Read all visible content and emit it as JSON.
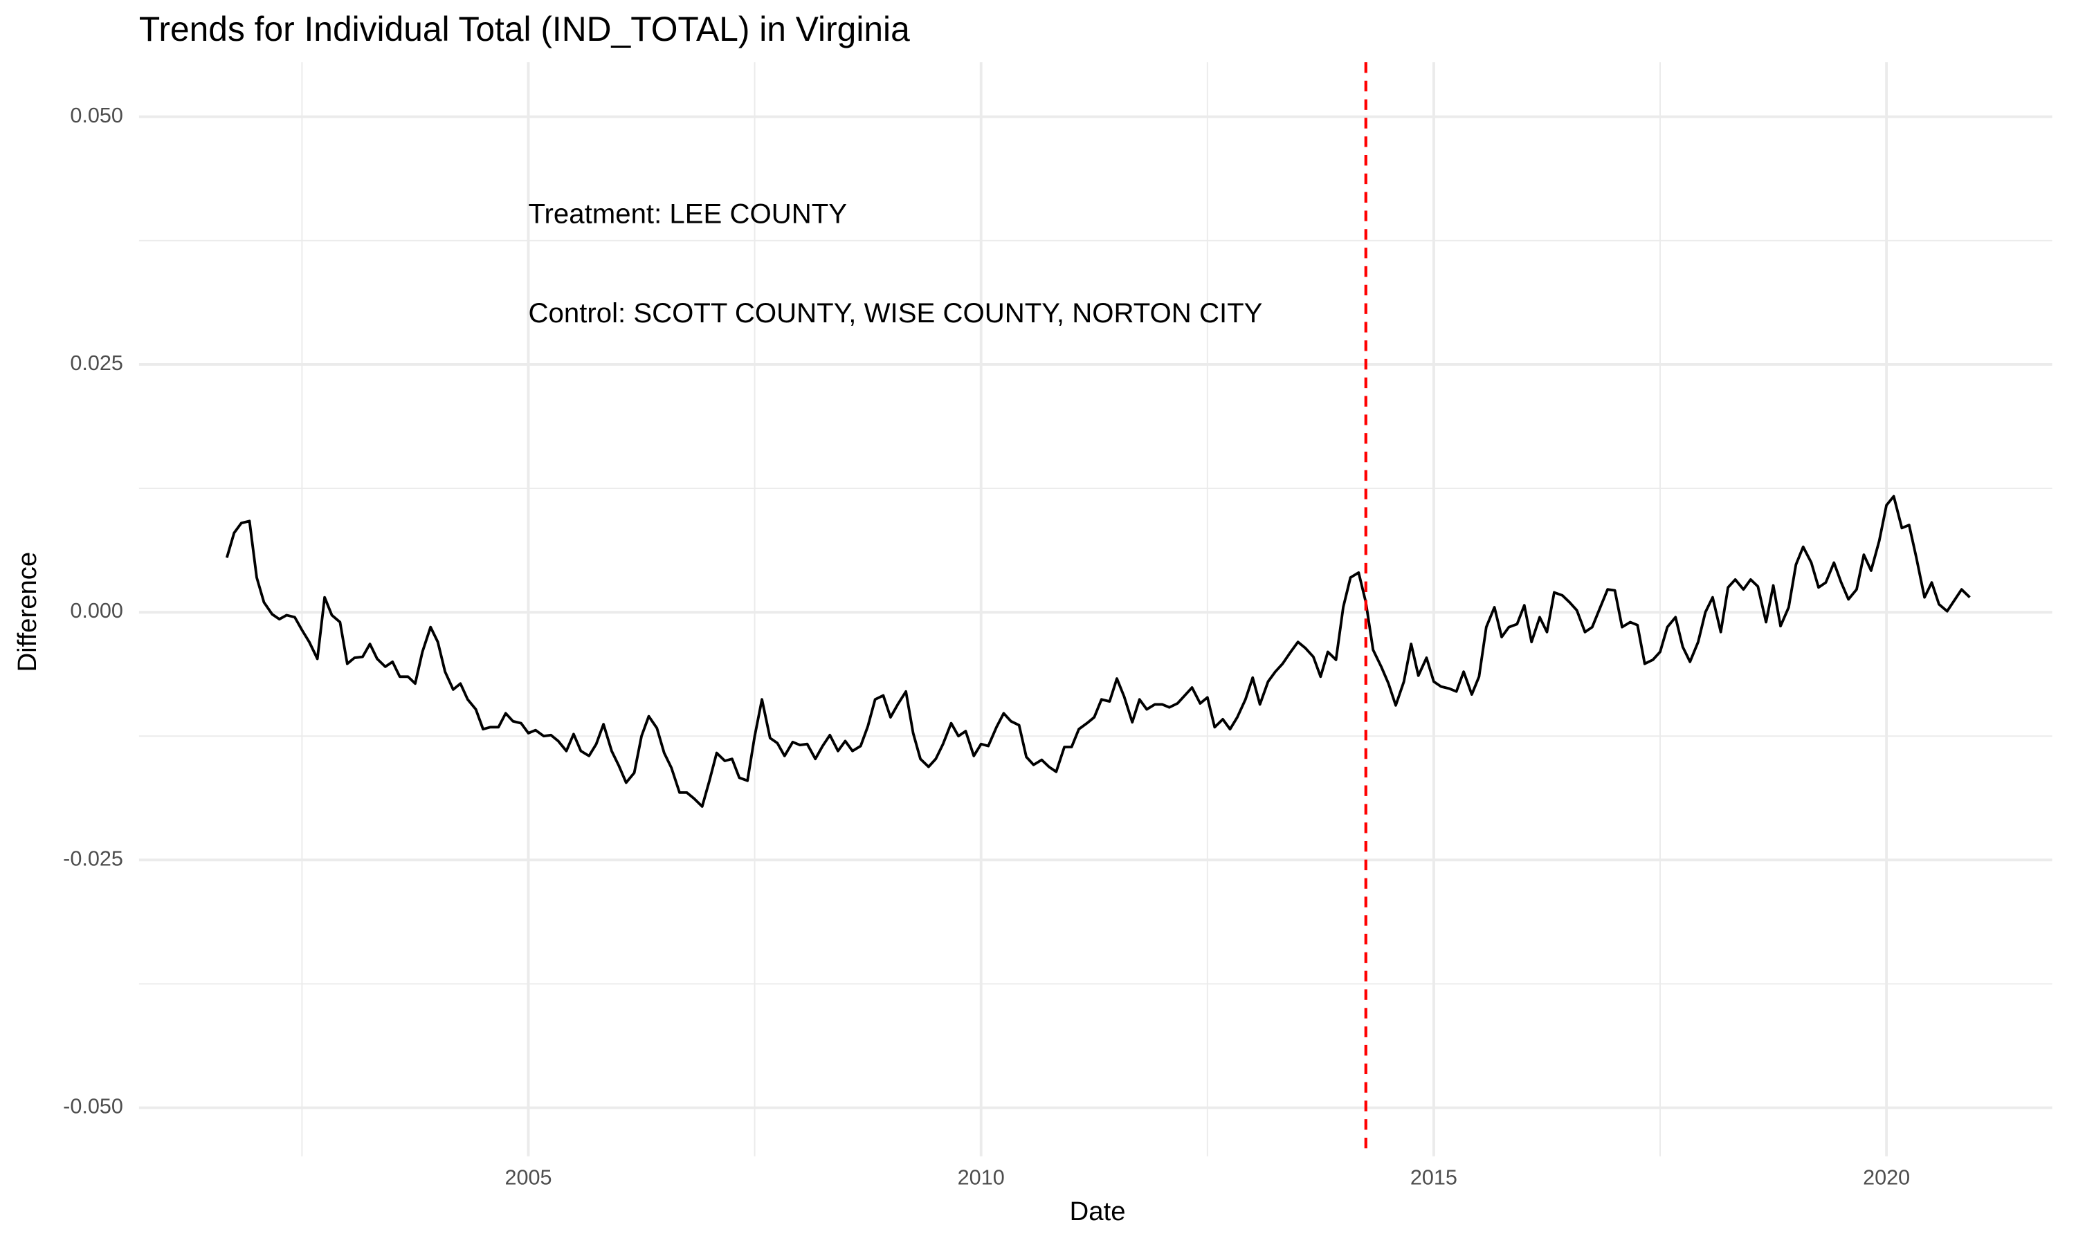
{
  "chart_data": {
    "type": "line",
    "title": "Trends for Individual Total (IND_TOTAL) in Virginia",
    "x_label": "Date",
    "y_label": "Difference",
    "color": "#000000",
    "x": [
      2001.67,
      2001.75,
      2001.83,
      2001.92,
      2002.0,
      2002.08,
      2002.17,
      2002.25,
      2002.33,
      2002.42,
      2002.5,
      2002.58,
      2002.67,
      2002.75,
      2002.83,
      2002.92,
      2003.0,
      2003.08,
      2003.17,
      2003.25,
      2003.33,
      2003.42,
      2003.5,
      2003.58,
      2003.67,
      2003.75,
      2003.83,
      2003.92,
      2004.0,
      2004.08,
      2004.17,
      2004.25,
      2004.33,
      2004.42,
      2004.5,
      2004.58,
      2004.67,
      2004.75,
      2004.83,
      2004.92,
      2005.0,
      2005.08,
      2005.17,
      2005.25,
      2005.33,
      2005.42,
      2005.5,
      2005.58,
      2005.67,
      2005.75,
      2005.83,
      2005.92,
      2006.0,
      2006.08,
      2006.17,
      2006.25,
      2006.33,
      2006.42,
      2006.5,
      2006.58,
      2006.67,
      2006.75,
      2006.83,
      2006.92,
      2007.0,
      2007.08,
      2007.17,
      2007.25,
      2007.33,
      2007.42,
      2007.5,
      2007.58,
      2007.67,
      2007.75,
      2007.83,
      2007.92,
      2008.0,
      2008.08,
      2008.17,
      2008.25,
      2008.33,
      2008.42,
      2008.5,
      2008.58,
      2008.67,
      2008.75,
      2008.83,
      2008.92,
      2009.0,
      2009.08,
      2009.17,
      2009.25,
      2009.33,
      2009.42,
      2009.5,
      2009.58,
      2009.67,
      2009.75,
      2009.83,
      2009.92,
      2010.0,
      2010.08,
      2010.17,
      2010.25,
      2010.33,
      2010.42,
      2010.5,
      2010.58,
      2010.67,
      2010.75,
      2010.83,
      2010.92,
      2011.0,
      2011.08,
      2011.17,
      2011.25,
      2011.33,
      2011.42,
      2011.5,
      2011.58,
      2011.67,
      2011.75,
      2011.83,
      2011.92,
      2012.0,
      2012.08,
      2012.17,
      2012.25,
      2012.33,
      2012.42,
      2012.5,
      2012.58,
      2012.67,
      2012.75,
      2012.83,
      2012.92,
      2013.0,
      2013.08,
      2013.17,
      2013.25,
      2013.33,
      2013.42,
      2013.5,
      2013.58,
      2013.67,
      2013.75,
      2013.83,
      2013.92,
      2014.0,
      2014.08,
      2014.17,
      2014.25,
      2014.33,
      2014.42,
      2014.5,
      2014.58,
      2014.67,
      2014.75,
      2014.83,
      2014.92,
      2015.0,
      2015.08,
      2015.17,
      2015.25,
      2015.33,
      2015.42,
      2015.5,
      2015.58,
      2015.67,
      2015.75,
      2015.83,
      2015.92,
      2016.0,
      2016.08,
      2016.17,
      2016.25,
      2016.33,
      2016.42,
      2016.5,
      2016.58,
      2016.67,
      2016.75,
      2016.83,
      2016.92,
      2017.0,
      2017.08,
      2017.17,
      2017.25,
      2017.33,
      2017.42,
      2017.5,
      2017.58,
      2017.67,
      2017.75,
      2017.83,
      2017.92,
      2018.0,
      2018.08,
      2018.17,
      2018.25,
      2018.33,
      2018.42,
      2018.5,
      2018.58,
      2018.67,
      2018.75,
      2018.83,
      2018.92,
      2019.0,
      2019.08,
      2019.17,
      2019.25,
      2019.33,
      2019.42,
      2019.5,
      2019.58,
      2019.67,
      2019.75,
      2019.83,
      2019.92,
      2020.0,
      2020.08,
      2020.17,
      2020.25,
      2020.33,
      2020.42,
      2020.5,
      2020.58,
      2020.67,
      2020.75,
      2020.83,
      2020.92
    ],
    "values": [
      0.0055,
      0.008,
      0.009,
      0.0092,
      0.0035,
      0.001,
      -0.0002,
      -0.0007,
      -0.0003,
      -0.0005,
      -0.0018,
      -0.003,
      -0.0047,
      0.0015,
      -0.0003,
      -0.001,
      -0.0052,
      -0.0046,
      -0.0045,
      -0.0032,
      -0.0047,
      -0.0055,
      -0.005,
      -0.0065,
      -0.0065,
      -0.0072,
      -0.004,
      -0.0015,
      -0.003,
      -0.006,
      -0.0078,
      -0.0072,
      -0.0088,
      -0.0098,
      -0.0118,
      -0.0116,
      -0.0116,
      -0.0102,
      -0.011,
      -0.0112,
      -0.0122,
      -0.0119,
      -0.0125,
      -0.0124,
      -0.013,
      -0.014,
      -0.0123,
      -0.014,
      -0.0145,
      -0.0133,
      -0.0113,
      -0.014,
      -0.0155,
      -0.0172,
      -0.0162,
      -0.0125,
      -0.0105,
      -0.0117,
      -0.0142,
      -0.0157,
      -0.0182,
      -0.0182,
      -0.0188,
      -0.0196,
      -0.017,
      -0.0142,
      -0.015,
      -0.0148,
      -0.0167,
      -0.017,
      -0.0125,
      -0.0088,
      -0.0127,
      -0.0132,
      -0.0145,
      -0.0131,
      -0.0134,
      -0.0133,
      -0.0148,
      -0.0135,
      -0.0124,
      -0.014,
      -0.013,
      -0.014,
      -0.0135,
      -0.0115,
      -0.0088,
      -0.0084,
      -0.0106,
      -0.0093,
      -0.008,
      -0.0122,
      -0.0148,
      -0.0156,
      -0.0148,
      -0.0133,
      -0.0112,
      -0.0125,
      -0.012,
      -0.0145,
      -0.0133,
      -0.0135,
      -0.0116,
      -0.0102,
      -0.011,
      -0.0114,
      -0.0146,
      -0.0154,
      -0.0149,
      -0.0156,
      -0.0161,
      -0.0136,
      -0.0136,
      -0.0118,
      -0.0112,
      -0.0106,
      -0.0088,
      -0.009,
      -0.0067,
      -0.0085,
      -0.0111,
      -0.0088,
      -0.0098,
      -0.0093,
      -0.0093,
      -0.0096,
      -0.0092,
      -0.0084,
      -0.0076,
      -0.0092,
      -0.0086,
      -0.0116,
      -0.0108,
      -0.0118,
      -0.0106,
      -0.0088,
      -0.0066,
      -0.0093,
      -0.007,
      -0.006,
      -0.0052,
      -0.004,
      -0.003,
      -0.0036,
      -0.0045,
      -0.0065,
      -0.004,
      -0.0048,
      0.0005,
      0.0035,
      0.004,
      0.001,
      -0.0038,
      -0.0055,
      -0.0072,
      -0.0094,
      -0.007,
      -0.0032,
      -0.0064,
      -0.0046,
      -0.007,
      -0.0075,
      -0.0077,
      -0.008,
      -0.006,
      -0.0083,
      -0.0065,
      -0.0015,
      0.0005,
      -0.0025,
      -0.0015,
      -0.0012,
      0.0007,
      -0.003,
      -0.0005,
      -0.002,
      0.002,
      0.0017,
      0.001,
      0.0002,
      -0.002,
      -0.0015,
      0.0003,
      0.0023,
      0.0022,
      -0.0015,
      -0.001,
      -0.0013,
      -0.0052,
      -0.0048,
      -0.004,
      -0.0015,
      -0.0005,
      -0.0035,
      -0.005,
      -0.003,
      0.0,
      0.0015,
      -0.002,
      0.0025,
      0.0033,
      0.0023,
      0.0033,
      0.0026,
      -0.001,
      0.0027,
      -0.0014,
      0.0005,
      0.0048,
      0.0066,
      0.005,
      0.0025,
      0.003,
      0.005,
      0.003,
      0.0013,
      0.0023,
      0.0058,
      0.0042,
      0.0072,
      0.0108,
      0.0117,
      0.0085,
      0.0088,
      0.0055,
      0.0015,
      0.003,
      0.0008,
      0.0001,
      0.0012,
      0.0023,
      0.0015
    ],
    "xlim": [
      2000.7,
      2021.83
    ],
    "xticks": [
      2005,
      2010,
      2015,
      2020
    ],
    "xminorticks": [
      2002.5,
      2007.5,
      2012.5,
      2017.5
    ],
    "ylim": [
      -0.0549,
      0.0555
    ],
    "yticks": [
      {
        "value": 0.05,
        "label": "0.050"
      },
      {
        "value": 0.025,
        "label": "0.025"
      },
      {
        "value": 0,
        "label": "0.000"
      },
      {
        "value": -0.025,
        "label": "-0.025"
      },
      {
        "value": -0.05,
        "label": "-0.050"
      }
    ],
    "yminorticks": [
      0.0375,
      0.0125,
      -0.0125,
      -0.0375
    ],
    "grid": true,
    "vline": {
      "x": 2014.25,
      "color": "#ff0000"
    },
    "annotations": [
      {
        "text": "Treatment: LEE COUNTY",
        "x": 2005,
        "y": 0.04
      },
      {
        "text": "Control: SCOTT COUNTY, WISE COUNTY, NORTON CITY",
        "x": 2005,
        "y": 0.03
      }
    ]
  }
}
